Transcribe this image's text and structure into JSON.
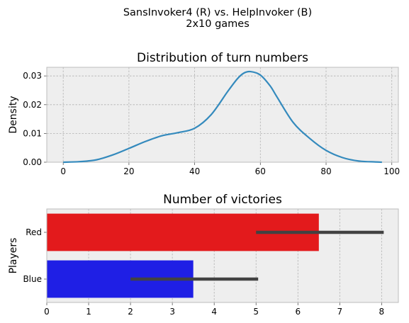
{
  "figure": {
    "suptitle_line1": "SansInvoker4 (R) vs. HelpInvoker (B)",
    "suptitle_line2": "2x10 games"
  },
  "chart_data": [
    {
      "type": "line",
      "title": "Distribution of turn numbers",
      "xlabel": "",
      "ylabel": "Density",
      "xlim": [
        -5,
        102
      ],
      "ylim": [
        0,
        0.033
      ],
      "xticks": [
        0,
        20,
        40,
        60,
        80,
        100
      ],
      "yticks": [
        0,
        0.01,
        0.02,
        0.03
      ],
      "ytick_labels": [
        "0.00",
        "0.01",
        "0.02",
        "0.03"
      ],
      "grid": true,
      "line_color": "#348abd",
      "x": [
        0,
        5,
        10,
        15,
        20,
        25,
        30,
        35,
        40,
        45,
        50,
        53,
        55,
        57,
        60,
        63,
        65,
        70,
        75,
        80,
        85,
        90,
        95,
        97
      ],
      "y": [
        0.0,
        0.0002,
        0.0008,
        0.0025,
        0.0048,
        0.0072,
        0.0092,
        0.0103,
        0.0118,
        0.0165,
        0.0245,
        0.029,
        0.031,
        0.0315,
        0.0303,
        0.0265,
        0.0228,
        0.0138,
        0.0083,
        0.0041,
        0.0016,
        0.0004,
        0.0001,
        0.0
      ]
    },
    {
      "type": "bar",
      "orientation": "horizontal",
      "title": "Number of victories",
      "xlabel": "",
      "ylabel": "Players",
      "categories": [
        "Red",
        "Blue"
      ],
      "values": [
        6.5,
        3.5
      ],
      "error_low": [
        5.0,
        2.0
      ],
      "error_high": [
        8.05,
        5.05
      ],
      "bar_colors": [
        "#e31a1c",
        "#1f1fe5"
      ],
      "error_color": "#424242",
      "xlim": [
        0,
        8.4
      ],
      "xticks": [
        0,
        1,
        2,
        3,
        4,
        5,
        6,
        7,
        8
      ],
      "grid": true
    }
  ]
}
